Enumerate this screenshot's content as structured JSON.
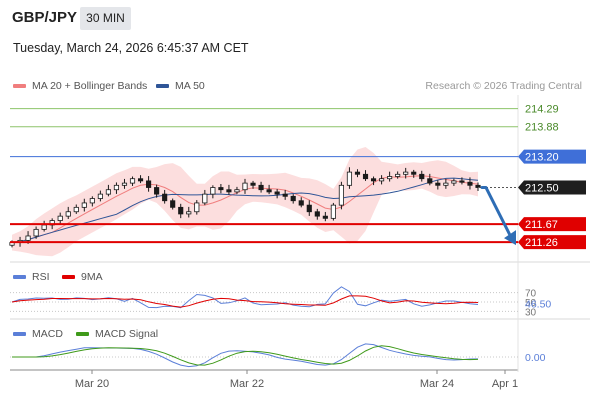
{
  "header": {
    "symbol": "GBP/JPY",
    "timeframe": "30 MIN",
    "datetime": "Tuesday, March 24, 2026 6:45:37 AM CET"
  },
  "legend": {
    "ma20_label": "MA 20 + Bollinger Bands",
    "ma50_label": "MA 50",
    "credit": "Research © 2026 Trading Central",
    "rsi_label": "RSI",
    "rsi_ma_label": "9MA",
    "macd_label": "MACD",
    "macd_signal_label": "MACD Signal"
  },
  "colors": {
    "ma20": "#f07e7e",
    "ma50": "#2f5597",
    "bands": "#fbd3d3",
    "candles": "#1a1a1a",
    "resistance_green": "#8dc46a",
    "pivot_blue": "#3f6fd8",
    "support_red": "#e00000",
    "arrow": "#2e6db5",
    "rsi": "#5b7fd8",
    "rsi_ma": "#e00000",
    "macd": "#5b7fd8",
    "macd_signal": "#3f9a1a"
  },
  "chart_data": [
    {
      "type": "candlestick",
      "title": "GBP/JPY 30 MIN",
      "x_ticks": [
        "Mar 20",
        "Mar 22",
        "Mar 24",
        "Apr 1"
      ],
      "ylim": [
        210.9,
        214.6
      ],
      "last_price": 212.5,
      "levels": [
        {
          "value": 214.29,
          "kind": "resistance-2"
        },
        {
          "value": 213.88,
          "kind": "resistance-1"
        },
        {
          "value": 213.2,
          "kind": "pivot"
        },
        {
          "value": 211.67,
          "kind": "support-1"
        },
        {
          "value": 211.26,
          "kind": "support-2"
        }
      ],
      "projection": {
        "from": 212.5,
        "to": 211.26,
        "direction": "down"
      },
      "close": [
        211.25,
        211.3,
        211.4,
        211.55,
        211.65,
        211.75,
        211.85,
        211.95,
        212.05,
        212.15,
        212.25,
        212.35,
        212.45,
        212.55,
        212.6,
        212.7,
        212.65,
        212.5,
        212.35,
        212.2,
        212.05,
        211.9,
        211.95,
        212.15,
        212.35,
        212.5,
        212.45,
        212.4,
        212.45,
        212.6,
        212.55,
        212.45,
        212.4,
        212.35,
        212.3,
        212.2,
        212.1,
        211.95,
        211.85,
        211.8,
        212.1,
        212.55,
        212.85,
        212.8,
        212.7,
        212.65,
        212.7,
        212.75,
        212.8,
        212.85,
        212.8,
        212.7,
        212.6,
        212.55,
        212.6,
        212.65,
        212.62,
        212.55,
        212.5
      ]
    },
    {
      "type": "line",
      "name": "RSI",
      "ticks": [
        70,
        50,
        30
      ],
      "current": 46.5
    },
    {
      "type": "line",
      "name": "MACD",
      "ticks": [
        0.0
      ],
      "current": 0.0
    }
  ]
}
